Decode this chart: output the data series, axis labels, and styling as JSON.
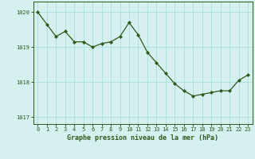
{
  "x": [
    0,
    1,
    2,
    3,
    4,
    5,
    6,
    7,
    8,
    9,
    10,
    11,
    12,
    13,
    14,
    15,
    16,
    17,
    18,
    19,
    20,
    21,
    22,
    23
  ],
  "y": [
    1020.0,
    1019.65,
    1019.3,
    1019.45,
    1019.15,
    1019.15,
    1019.0,
    1019.1,
    1019.15,
    1019.3,
    1019.7,
    1019.35,
    1018.85,
    1018.55,
    1018.25,
    1017.95,
    1017.75,
    1017.6,
    1017.65,
    1017.7,
    1017.75,
    1017.75,
    1018.05,
    1018.2
  ],
  "line_color": "#2d5a1b",
  "marker": "D",
  "marker_size": 2.2,
  "bg_color": "#d6f0f0",
  "grid_color": "#aadddd",
  "xlabel": "Graphe pression niveau de la mer (hPa)",
  "xlabel_color": "#2d5a1b",
  "tick_color": "#2d5a1b",
  "axis_color": "#2d5a1b",
  "ylim": [
    1016.8,
    1020.3
  ],
  "yticks": [
    1017,
    1018,
    1019,
    1020
  ],
  "xlim": [
    -0.5,
    23.5
  ],
  "xticks": [
    0,
    1,
    2,
    3,
    4,
    5,
    6,
    7,
    8,
    9,
    10,
    11,
    12,
    13,
    14,
    15,
    16,
    17,
    18,
    19,
    20,
    21,
    22,
    23
  ],
  "xtick_labels": [
    "0",
    "1",
    "2",
    "3",
    "4",
    "5",
    "6",
    "7",
    "8",
    "9",
    "10",
    "11",
    "12",
    "13",
    "14",
    "15",
    "16",
    "17",
    "18",
    "19",
    "20",
    "21",
    "22",
    "23"
  ],
  "tick_fontsize": 5.0,
  "xlabel_fontsize": 6.0,
  "linewidth": 0.9
}
